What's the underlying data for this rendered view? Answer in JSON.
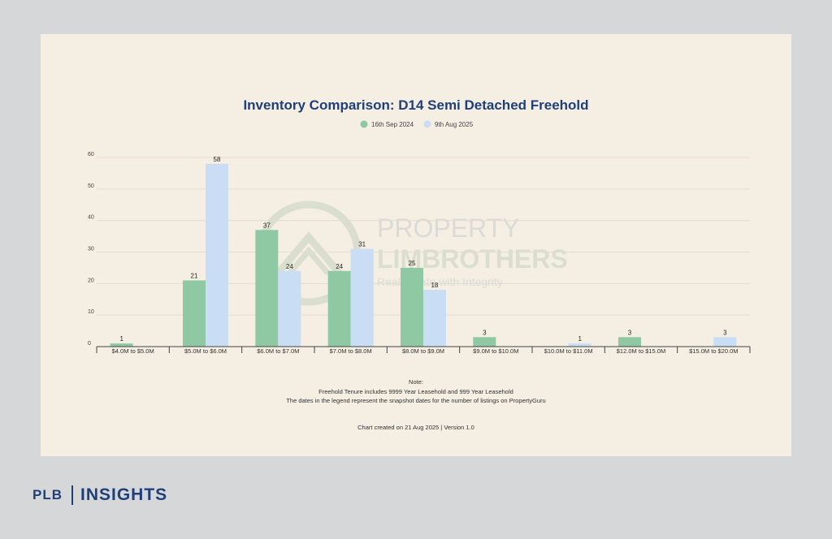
{
  "branding": {
    "plb": "PLB",
    "insights": "INSIGHTS",
    "watermark_line1": "PROPERTY",
    "watermark_line2": "LIMBROTHERS",
    "watermark_tagline": "Real Estate with Integrity"
  },
  "colors": {
    "background": "#d6d7d9",
    "card": "#f5eee2",
    "title": "#1f3f7a",
    "series_2024": "#8fc9a3",
    "series_2025": "#c9ddf5"
  },
  "notes": {
    "heading": "Note:",
    "line1": "Freehold Tenure includes 9999 Year Leasehold and 999 Year Leasehold",
    "line2": "The dates in the legend represent the snapshot dates for the number of listings on PropertyGuru",
    "created": "Chart created on 21 Aug 2025 | Version 1.0"
  },
  "chart_data": {
    "type": "bar",
    "title": "Inventory Comparison: D14 Semi Detached Freehold",
    "xlabel": "",
    "ylabel": "",
    "ylim": [
      0,
      60
    ],
    "yticks": [
      0,
      10,
      20,
      30,
      40,
      50,
      60
    ],
    "grid": true,
    "legend_position": "top-center",
    "categories": [
      "$4.0M to $5.0M",
      "$5.0M to $6.0M",
      "$6.0M to $7.0M",
      "$7.0M to $8.0M",
      "$8.0M to $9.0M",
      "$9.0M to $10.0M",
      "$10.0M to $11.0M",
      "$12.0M to $15.0M",
      "$15.0M to $20.0M"
    ],
    "series": [
      {
        "name": "16th Sep 2024",
        "values": [
          1,
          21,
          37,
          24,
          25,
          3,
          null,
          3,
          null
        ]
      },
      {
        "name": "9th Aug 2025",
        "values": [
          null,
          58,
          24,
          31,
          18,
          null,
          1,
          null,
          3
        ]
      }
    ]
  }
}
